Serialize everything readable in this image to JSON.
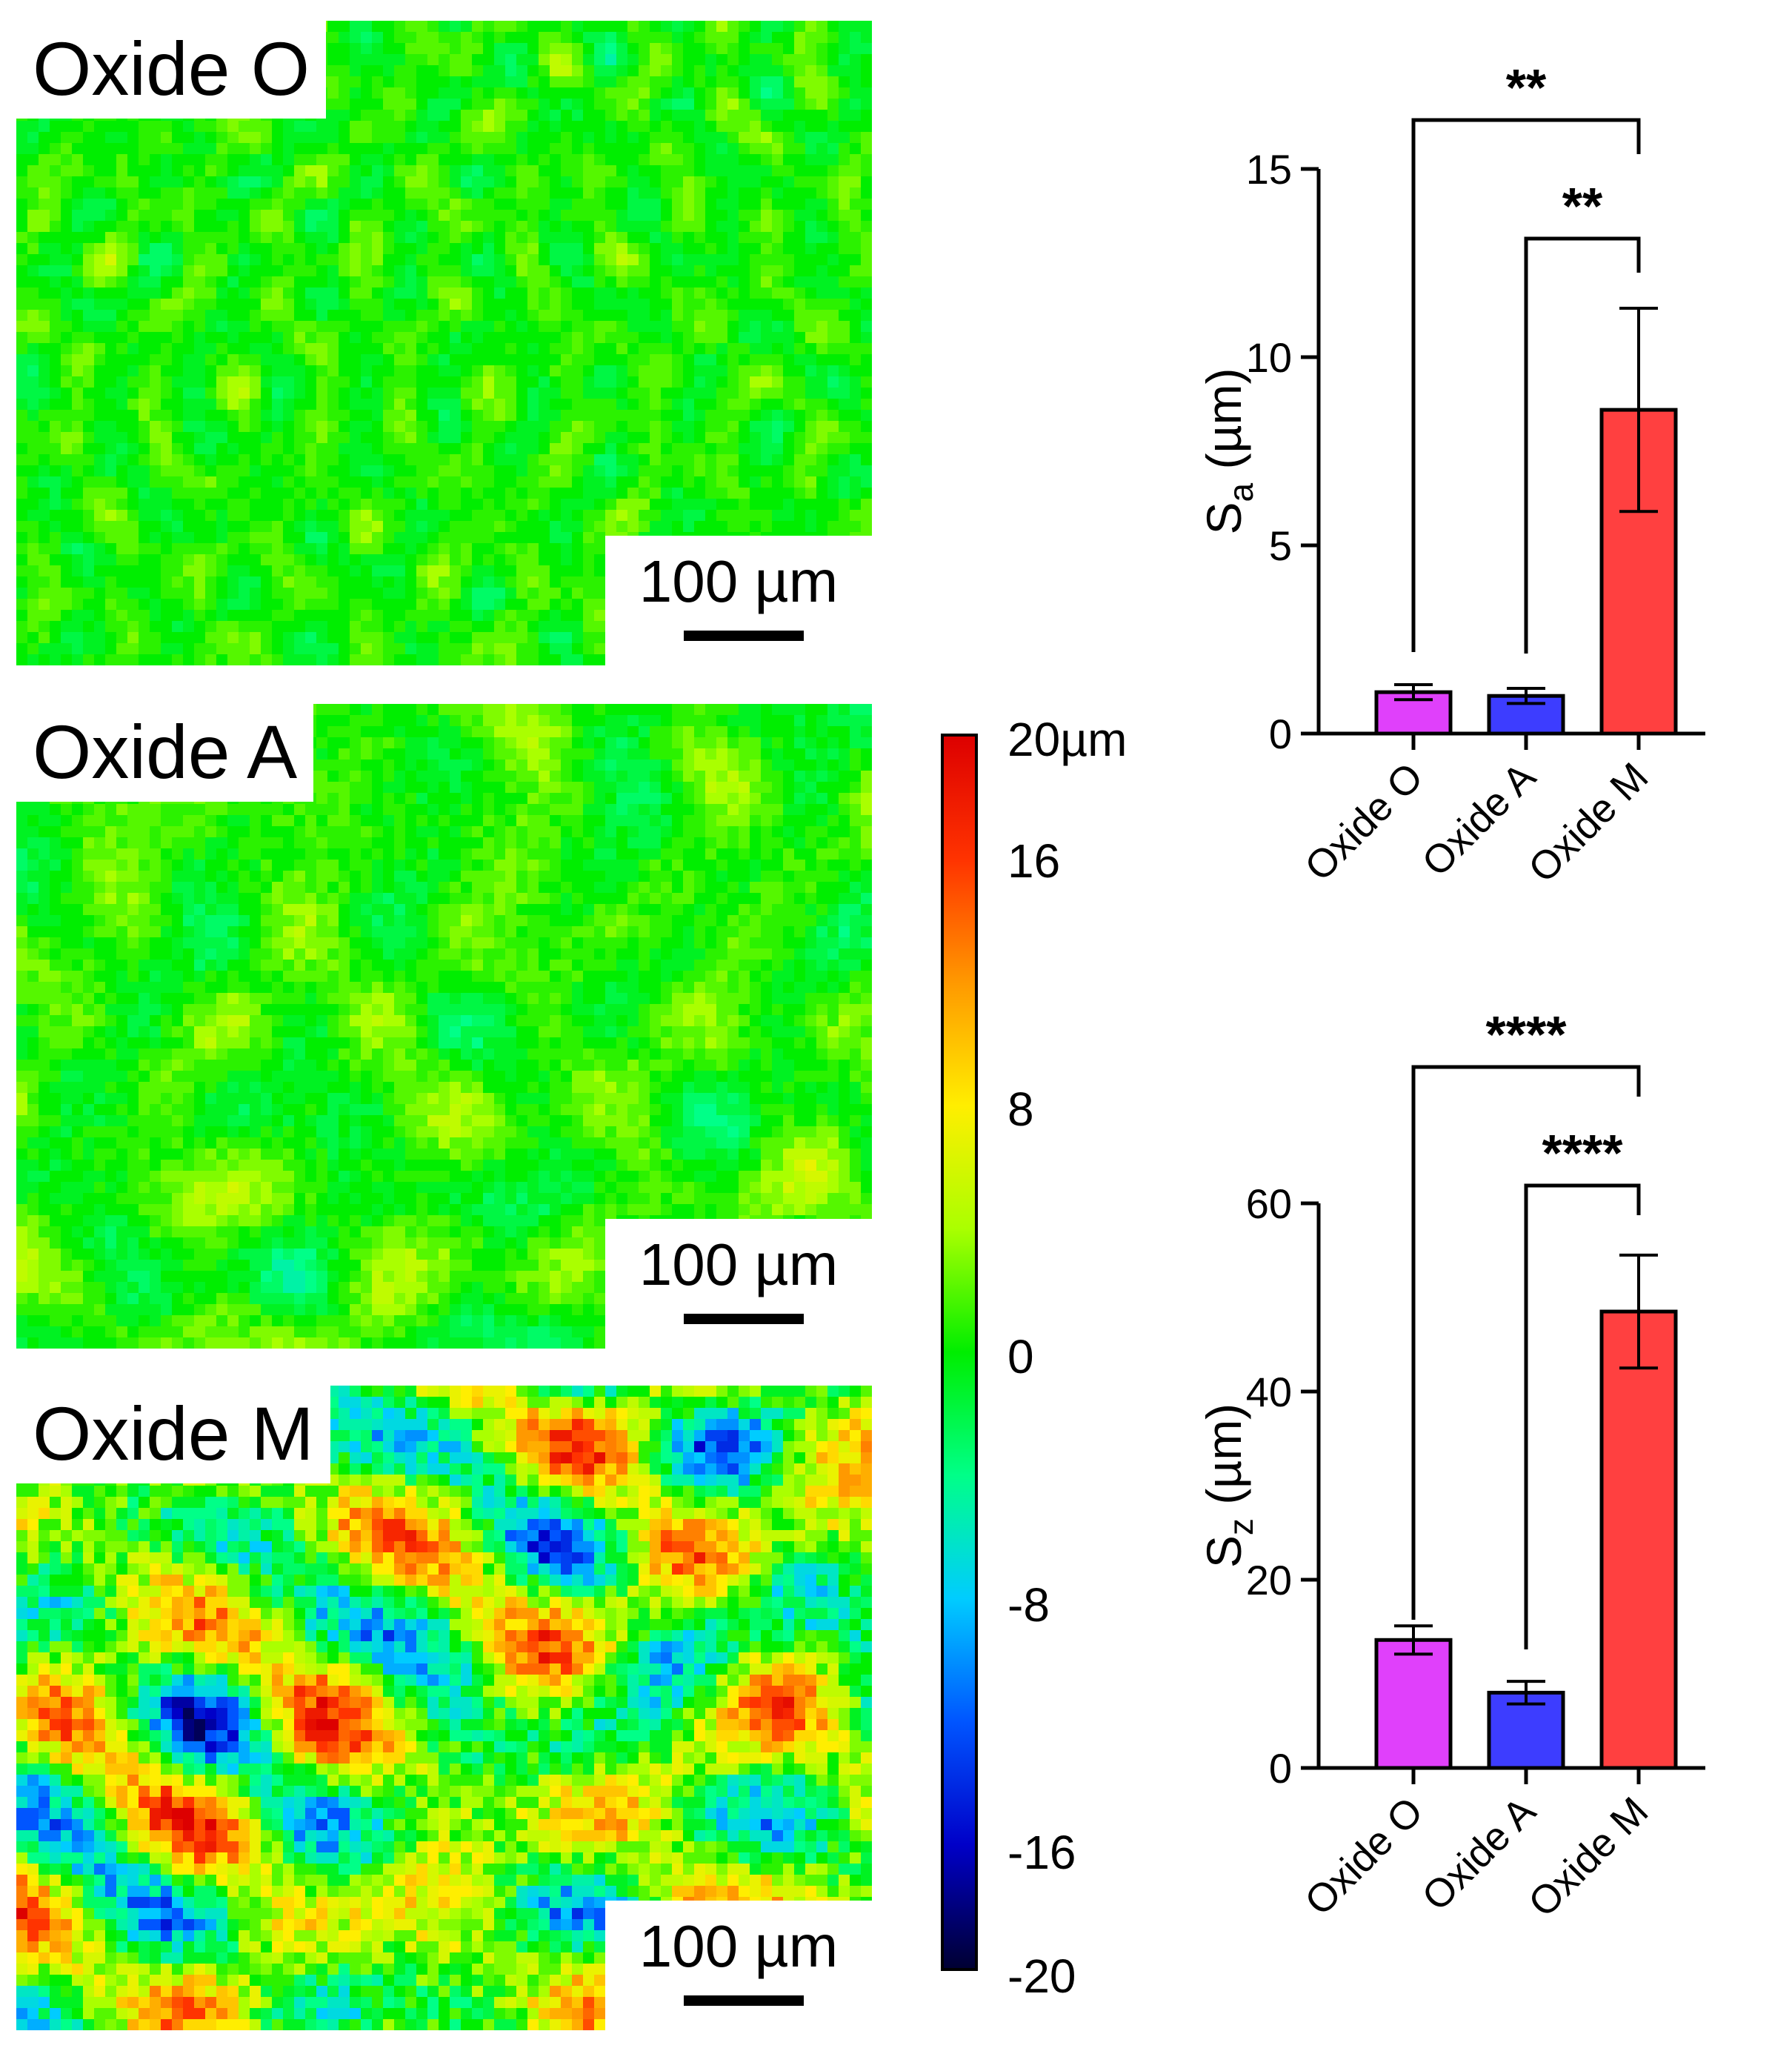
{
  "panels": [
    {
      "label": "Oxide O",
      "scalebar": "100 µm",
      "seed": 11,
      "mean": 0.4,
      "amp": 2.6,
      "freq": 2.2
    },
    {
      "label": "Oxide A",
      "scalebar": "100 µm",
      "seed": 23,
      "mean": 0.6,
      "amp": 3.4,
      "freq": 1.1
    },
    {
      "label": "Oxide M",
      "scalebar": "100 µm",
      "seed": 37,
      "mean": 2.0,
      "amp": 11.5,
      "freq": 0.85
    }
  ],
  "colorbar": {
    "unit_label": "20µm",
    "tick_labels": [
      "16",
      "8",
      "0",
      "-8",
      "-16",
      "-20"
    ],
    "stops": [
      "#000033",
      "#0000c8",
      "#0055ff",
      "#00ccff",
      "#00ff88",
      "#00ee00",
      "#aaff00",
      "#ffee00",
      "#ff9900",
      "#ff3300",
      "#dd0000"
    ]
  },
  "chart_data": [
    {
      "type": "bar",
      "title": "",
      "xlabel": "",
      "ylabel": "S_a (µm)",
      "ylabel_main": "S",
      "ylabel_sub": "a",
      "ylabel_unit": " (µm)",
      "categories": [
        "Oxide O",
        "Oxide A",
        "Oxide M"
      ],
      "values": [
        1.1,
        1.0,
        8.6
      ],
      "errors": [
        0.2,
        0.2,
        2.7
      ],
      "colors": [
        "#e040fb",
        "#3d3dff",
        "#ff4040"
      ],
      "ylim": [
        0,
        15
      ],
      "yticks": [
        0,
        5,
        10,
        15
      ],
      "significance": [
        {
          "from": 0,
          "to": 2,
          "label": "**"
        },
        {
          "from": 1,
          "to": 2,
          "label": "**"
        }
      ]
    },
    {
      "type": "bar",
      "title": "",
      "xlabel": "",
      "ylabel": "S_z (µm)",
      "ylabel_main": "S",
      "ylabel_sub": "z",
      "ylabel_unit": " (µm)",
      "categories": [
        "Oxide O",
        "Oxide A",
        "Oxide M"
      ],
      "values": [
        13.6,
        8.0,
        48.5
      ],
      "errors": [
        1.5,
        1.2,
        6.0
      ],
      "colors": [
        "#e040fb",
        "#3d3dff",
        "#ff4040"
      ],
      "ylim": [
        0,
        60
      ],
      "yticks": [
        0,
        20,
        40,
        60
      ],
      "significance": [
        {
          "from": 0,
          "to": 2,
          "label": "****"
        },
        {
          "from": 1,
          "to": 2,
          "label": "****"
        }
      ]
    }
  ]
}
